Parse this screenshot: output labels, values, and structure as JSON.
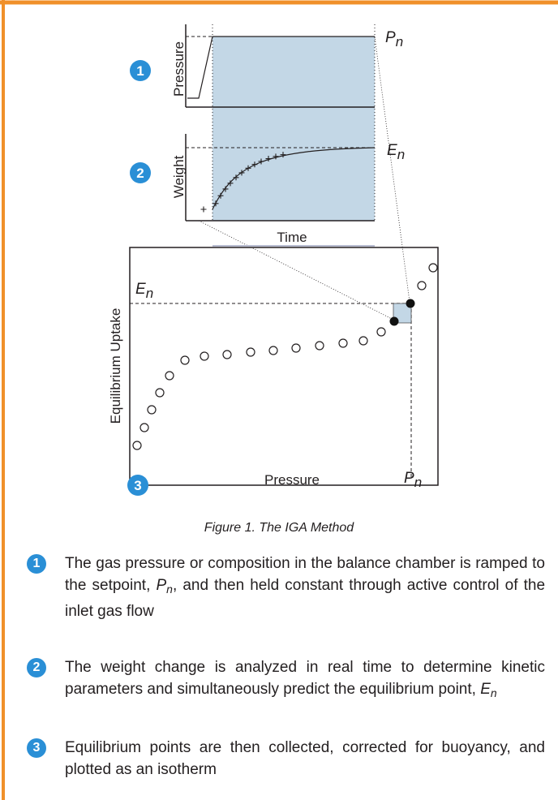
{
  "panels": [
    {
      "badge": "1",
      "y_label": "Pressure",
      "end_label": {
        "main": "P",
        "sub": "n"
      }
    },
    {
      "badge": "2",
      "y_label": "Weight",
      "x_label": "Time",
      "end_label": {
        "main": "E",
        "sub": "n"
      },
      "marker": "+"
    },
    {
      "badge": "3",
      "y_label": "Equilibrium Uptake",
      "x_label": "Pressure",
      "y_end_label": {
        "main": "E",
        "sub": "n"
      },
      "x_end_label": {
        "main": "P",
        "sub": "n"
      }
    }
  ],
  "caption": "Figure 1. The IGA Method",
  "steps": [
    {
      "number": "1",
      "before": "The gas pressure or composition in the balance chamber is ramped to the setpoint, ",
      "symbol": "P",
      "symbol_sub": "n",
      "after": ", and then held constant through active control of the inlet gas flow"
    },
    {
      "number": "2",
      "before": "The weight change is analyzed in real time to determine kinetic parameters and simultaneously predict the equilibrium point, ",
      "symbol": "E",
      "symbol_sub": "n",
      "after": ""
    },
    {
      "number": "3",
      "before": "Equilibrium points are then collected, corrected for buoyancy, and plotted as an isotherm",
      "symbol": "",
      "symbol_sub": "",
      "after": ""
    }
  ]
}
